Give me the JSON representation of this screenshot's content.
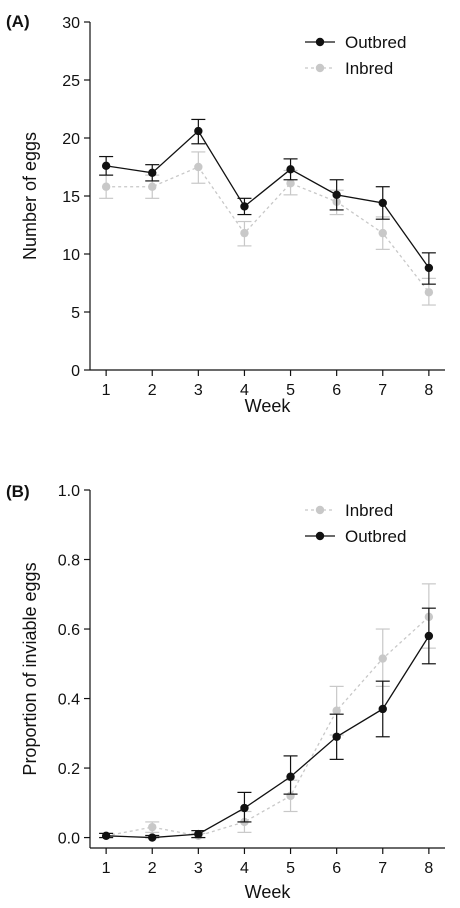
{
  "chart_data": [
    {
      "type": "line",
      "panel_label": "(A)",
      "xlabel": "Week",
      "ylabel": "Number of eggs",
      "x": [
        1,
        2,
        3,
        4,
        5,
        6,
        7,
        8
      ],
      "ylim": [
        0,
        30
      ],
      "yticks": [
        0,
        5,
        10,
        15,
        20,
        25,
        30
      ],
      "legend_position": "top-right",
      "series": [
        {
          "name": "Outbred",
          "color": "#111111",
          "line_style": "solid",
          "values": [
            17.6,
            17.0,
            20.6,
            14.1,
            17.3,
            15.1,
            14.4,
            8.8
          ],
          "error_low": [
            16.8,
            16.3,
            19.5,
            13.4,
            16.4,
            13.8,
            13.0,
            7.4
          ],
          "error_high": [
            18.4,
            17.7,
            21.6,
            14.8,
            18.2,
            16.4,
            15.8,
            10.1
          ]
        },
        {
          "name": "Inbred",
          "color": "#c8c8c8",
          "line_style": "dashed",
          "values": [
            15.8,
            15.8,
            17.5,
            11.8,
            16.1,
            14.5,
            11.8,
            6.7
          ],
          "error_low": [
            14.8,
            14.8,
            16.1,
            10.7,
            15.1,
            13.4,
            10.4,
            5.6
          ],
          "error_high": [
            16.8,
            16.8,
            18.8,
            12.8,
            17.2,
            15.5,
            13.2,
            7.9
          ]
        }
      ]
    },
    {
      "type": "line",
      "panel_label": "(B)",
      "xlabel": "Week",
      "ylabel": "Proportion of inviable eggs",
      "x": [
        1,
        2,
        3,
        4,
        5,
        6,
        7,
        8
      ],
      "ylim": [
        -0.03,
        1.0
      ],
      "yticks": [
        "0.0",
        "0.2",
        "0.4",
        "0.6",
        "0.8",
        "1.0"
      ],
      "legend_position": "top-right",
      "series": [
        {
          "name": "Inbred",
          "color": "#c8c8c8",
          "line_style": "dashed",
          "values": [
            0.005,
            0.03,
            0.005,
            0.045,
            0.12,
            0.365,
            0.515,
            0.635
          ],
          "error_low": [
            0.0,
            0.015,
            0.0,
            0.015,
            0.075,
            0.295,
            0.435,
            0.545
          ],
          "error_high": [
            0.012,
            0.045,
            0.012,
            0.075,
            0.165,
            0.435,
            0.6,
            0.73
          ]
        },
        {
          "name": "Outbred",
          "color": "#111111",
          "line_style": "solid",
          "values": [
            0.005,
            0.0,
            0.01,
            0.085,
            0.175,
            0.29,
            0.37,
            0.58
          ],
          "error_low": [
            0.0,
            0.0,
            0.0,
            0.045,
            0.125,
            0.225,
            0.29,
            0.5
          ],
          "error_high": [
            0.012,
            0.006,
            0.02,
            0.13,
            0.235,
            0.355,
            0.45,
            0.66
          ]
        }
      ]
    }
  ]
}
